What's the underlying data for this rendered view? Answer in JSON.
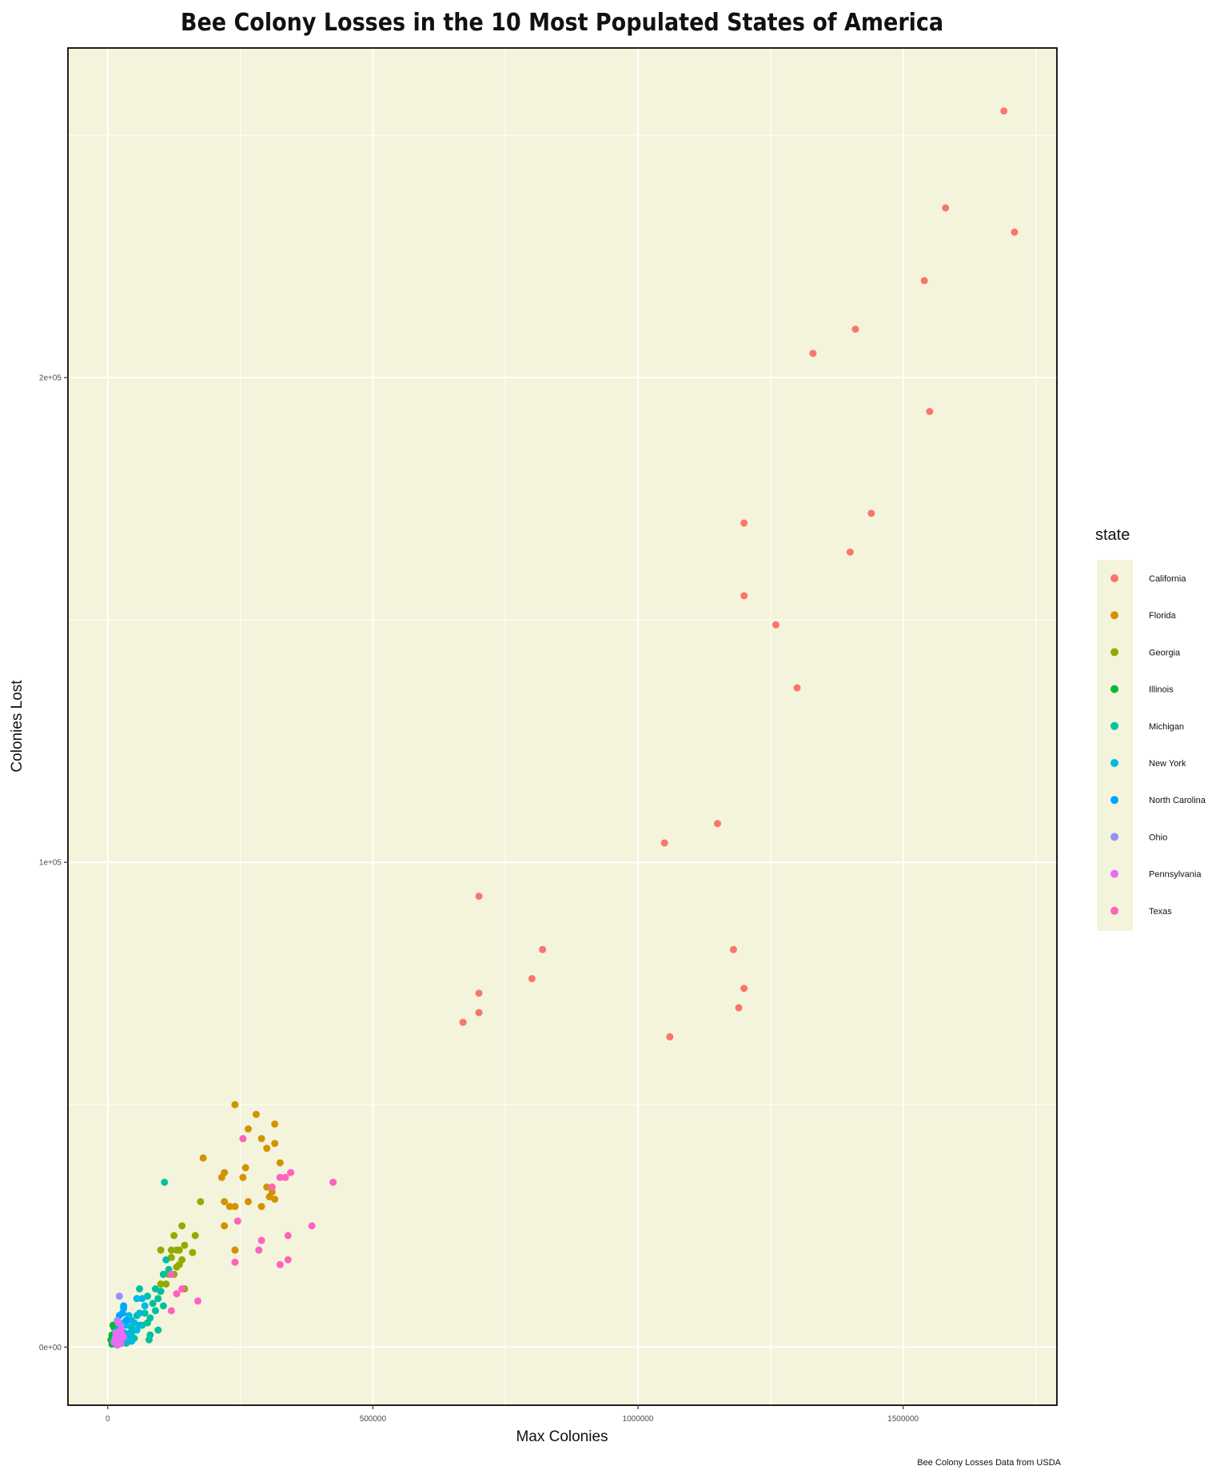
{
  "chart_data": {
    "type": "scatter",
    "title": "Bee Colony Losses in the 10 Most Populated States of America",
    "xlabel": "Max Colonies",
    "ylabel": "Colonies Lost",
    "caption": "Bee Colony Losses Data from USDA",
    "xlim": [
      -75000,
      1790000
    ],
    "ylim": [
      -12000,
      268000
    ],
    "x_ticks": [
      0,
      500000,
      1000000,
      1500000
    ],
    "x_tick_labels": [
      "0",
      "500000",
      "1000000",
      "1500000"
    ],
    "y_ticks": [
      0,
      100000,
      200000
    ],
    "y_tick_labels": [
      "0e+00",
      "1e+05",
      "2e+05"
    ],
    "x_minor_ticks": [
      250000,
      750000,
      1250000,
      1750000
    ],
    "y_minor_ticks": [
      50000,
      150000,
      250000
    ],
    "grid": true,
    "panel_background": "#f4f4dc",
    "legend": {
      "title": "state",
      "position": "right"
    },
    "series": [
      {
        "name": "California",
        "color": "#F8766D",
        "points": [
          [
            1690000,
            255000
          ],
          [
            1580000,
            235000
          ],
          [
            1710000,
            230000
          ],
          [
            1540000,
            220000
          ],
          [
            1410000,
            210000
          ],
          [
            1330000,
            205000
          ],
          [
            1550000,
            193000
          ],
          [
            1200000,
            170000
          ],
          [
            1440000,
            172000
          ],
          [
            1400000,
            164000
          ],
          [
            1200000,
            155000
          ],
          [
            1260000,
            149000
          ],
          [
            1300000,
            136000
          ],
          [
            1150000,
            108000
          ],
          [
            1050000,
            104000
          ],
          [
            700000,
            93000
          ],
          [
            820000,
            82000
          ],
          [
            800000,
            76000
          ],
          [
            700000,
            73000
          ],
          [
            1180000,
            82000
          ],
          [
            1200000,
            74000
          ],
          [
            1190000,
            70000
          ],
          [
            700000,
            69000
          ],
          [
            670000,
            67000
          ],
          [
            1060000,
            64000
          ]
        ]
      },
      {
        "name": "Florida",
        "color": "#D39200",
        "points": [
          [
            240000,
            50000
          ],
          [
            280000,
            48000
          ],
          [
            315000,
            46000
          ],
          [
            265000,
            45000
          ],
          [
            290000,
            43000
          ],
          [
            315000,
            42000
          ],
          [
            300000,
            41000
          ],
          [
            180000,
            39000
          ],
          [
            260000,
            37000
          ],
          [
            220000,
            36000
          ],
          [
            255000,
            35000
          ],
          [
            215000,
            35000
          ],
          [
            325000,
            38000
          ],
          [
            300000,
            33000
          ],
          [
            310000,
            32000
          ],
          [
            305000,
            31000
          ],
          [
            315000,
            30500
          ],
          [
            220000,
            30000
          ],
          [
            265000,
            30000
          ],
          [
            230000,
            29000
          ],
          [
            240000,
            29000
          ],
          [
            290000,
            29000
          ],
          [
            220000,
            25000
          ],
          [
            240000,
            20000
          ]
        ]
      },
      {
        "name": "Georgia",
        "color": "#93AA00",
        "points": [
          [
            175000,
            30000
          ],
          [
            140000,
            25000
          ],
          [
            165000,
            23000
          ],
          [
            125000,
            23000
          ],
          [
            145000,
            21000
          ],
          [
            120000,
            20000
          ],
          [
            100000,
            20000
          ],
          [
            135000,
            20000
          ],
          [
            160000,
            19500
          ],
          [
            130000,
            20000
          ],
          [
            140000,
            18000
          ],
          [
            135000,
            17000
          ],
          [
            120000,
            18500
          ],
          [
            130000,
            16500
          ],
          [
            115000,
            15000
          ],
          [
            125000,
            15000
          ],
          [
            105000,
            15000
          ],
          [
            110000,
            13000
          ],
          [
            145000,
            12000
          ],
          [
            100000,
            13000
          ]
        ]
      },
      {
        "name": "Illinois",
        "color": "#00BA38",
        "points": [
          [
            10000,
            4500
          ],
          [
            12000,
            4000
          ],
          [
            8000,
            2500
          ],
          [
            15000,
            3000
          ],
          [
            10000,
            2000
          ],
          [
            6000,
            1500
          ],
          [
            12000,
            1000
          ],
          [
            8000,
            600
          ]
        ]
      },
      {
        "name": "Michigan",
        "color": "#00C19F",
        "points": [
          [
            107000,
            34000
          ],
          [
            110000,
            18000
          ],
          [
            115000,
            16000
          ],
          [
            105000,
            15000
          ],
          [
            60000,
            12000
          ],
          [
            90000,
            12000
          ],
          [
            100000,
            11500
          ],
          [
            75000,
            10500
          ],
          [
            95000,
            10000
          ],
          [
            85000,
            9000
          ],
          [
            105000,
            8500
          ],
          [
            70000,
            7000
          ],
          [
            90000,
            7500
          ],
          [
            55000,
            6500
          ],
          [
            80000,
            6000
          ],
          [
            75000,
            5000
          ],
          [
            65000,
            4500
          ],
          [
            95000,
            3500
          ],
          [
            80000,
            2500
          ],
          [
            45000,
            4000
          ],
          [
            40000,
            2500
          ],
          [
            78000,
            1500
          ],
          [
            50000,
            1800
          ],
          [
            35000,
            800
          ]
        ]
      },
      {
        "name": "New York",
        "color": "#00B9E3",
        "points": [
          [
            55000,
            10000
          ],
          [
            65000,
            10000
          ],
          [
            70000,
            8500
          ],
          [
            30000,
            8000
          ],
          [
            60000,
            7000
          ],
          [
            40000,
            6500
          ],
          [
            50000,
            5000
          ],
          [
            45000,
            5500
          ],
          [
            60000,
            4500
          ],
          [
            35000,
            4500
          ],
          [
            30000,
            5000
          ],
          [
            45000,
            3000
          ],
          [
            55000,
            3500
          ],
          [
            40000,
            2800
          ],
          [
            25000,
            2000
          ],
          [
            35000,
            1500
          ],
          [
            45000,
            1200
          ],
          [
            20000,
            900
          ]
        ]
      },
      {
        "name": "North Carolina",
        "color": "#00A5FF",
        "points": [
          [
            30000,
            8500
          ],
          [
            28000,
            7000
          ],
          [
            22000,
            6500
          ],
          [
            35000,
            5500
          ],
          [
            25000,
            4000
          ],
          [
            18000,
            3500
          ],
          [
            30000,
            3000
          ],
          [
            20000,
            2000
          ],
          [
            15000,
            1500
          ],
          [
            22000,
            1000
          ]
        ]
      },
      {
        "name": "Ohio",
        "color": "#9590FF",
        "points": [
          [
            22000,
            10500
          ],
          [
            18000,
            5500
          ],
          [
            25000,
            4500
          ],
          [
            15000,
            3000
          ],
          [
            20000,
            2000
          ],
          [
            12000,
            1200
          ],
          [
            18000,
            800
          ]
        ]
      },
      {
        "name": "Pennsylvania",
        "color": "#E76BF3",
        "points": [
          [
            20000,
            5000
          ],
          [
            25000,
            3500
          ],
          [
            18000,
            3000
          ],
          [
            28000,
            2500
          ],
          [
            15000,
            2000
          ],
          [
            22000,
            1500
          ],
          [
            30000,
            2000
          ],
          [
            12000,
            1000
          ],
          [
            25000,
            700
          ],
          [
            18000,
            400
          ]
        ]
      },
      {
        "name": "Texas",
        "color": "#FF62BC",
        "points": [
          [
            255000,
            43000
          ],
          [
            345000,
            36000
          ],
          [
            335000,
            35000
          ],
          [
            325000,
            35000
          ],
          [
            425000,
            34000
          ],
          [
            310000,
            33000
          ],
          [
            245000,
            26000
          ],
          [
            385000,
            25000
          ],
          [
            340000,
            23000
          ],
          [
            290000,
            22000
          ],
          [
            285000,
            20000
          ],
          [
            240000,
            17500
          ],
          [
            340000,
            18000
          ],
          [
            325000,
            17000
          ],
          [
            120000,
            15000
          ],
          [
            140000,
            12000
          ],
          [
            130000,
            11000
          ],
          [
            170000,
            9500
          ],
          [
            120000,
            7500
          ]
        ]
      }
    ]
  }
}
